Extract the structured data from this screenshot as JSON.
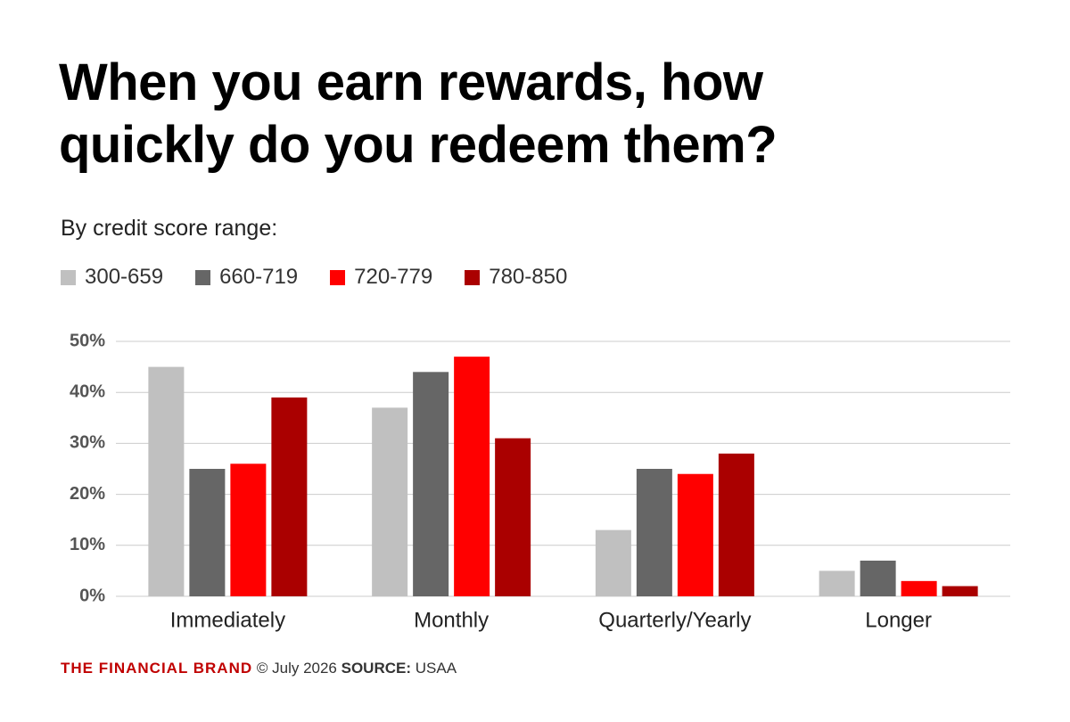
{
  "chart_data": {
    "type": "bar",
    "title": "When you earn rewards, how quickly do you redeem them?",
    "subtitle": "By credit score range:",
    "categories": [
      "Immediately",
      "Monthly",
      "Quarterly/Yearly",
      "Longer"
    ],
    "series": [
      {
        "name": "300-659",
        "color": "#c0c0c0",
        "values": [
          45,
          37,
          13,
          5
        ]
      },
      {
        "name": "660-719",
        "color": "#666666",
        "values": [
          25,
          44,
          25,
          7
        ]
      },
      {
        "name": "720-779",
        "color": "#ff0000",
        "values": [
          26,
          47,
          24,
          3
        ]
      },
      {
        "name": "780-850",
        "color": "#aa0000",
        "values": [
          39,
          31,
          28,
          2
        ]
      }
    ],
    "ylim": [
      0,
      50
    ],
    "yticks": [
      {
        "value": 0,
        "label": "0%"
      },
      {
        "value": 10,
        "label": "10%"
      },
      {
        "value": 20,
        "label": "20%"
      },
      {
        "value": 30,
        "label": "30%"
      },
      {
        "value": 40,
        "label": "40%"
      },
      {
        "value": 50,
        "label": "50%"
      }
    ],
    "grid": true
  },
  "footer": {
    "brand": "THE FINANCIAL BRAND",
    "date": "© July 2026",
    "source_label": "SOURCE:",
    "source": "USAA"
  }
}
